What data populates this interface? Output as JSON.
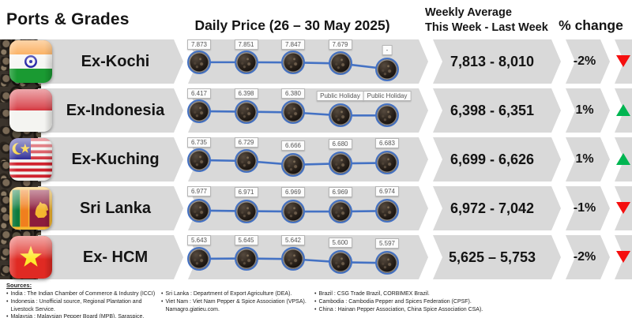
{
  "header": {
    "ports_grades": "Ports & Grades",
    "daily_price": "Daily Price (26 – 30 May 2025)",
    "weekly_avg_line1": "Weekly Average",
    "weekly_avg_line2": "This Week - Last Week",
    "pct_change": "% change"
  },
  "colors": {
    "band": "#d9d9d9",
    "line": "#4472c4",
    "up": "#00b551",
    "down": "#f50f0f",
    "label_border": "#b5b5b5"
  },
  "chart_data": {
    "type": "line",
    "title": "Daily Price (26 – 30 May 2025)",
    "days": 5,
    "legend_position": "none",
    "grid": false,
    "rows": [
      {
        "port": "Ex-Kochi",
        "flag": "india",
        "points": [
          {
            "label": "7.873",
            "y": 0.18
          },
          {
            "label": "7.851",
            "y": 0.18
          },
          {
            "label": "7.847",
            "y": 0.2
          },
          {
            "label": "7.679",
            "y": 0.28
          },
          {
            "label": "-",
            "y": 0.72
          }
        ],
        "weekly_average": "7,813 - 8,010",
        "pct_change": "-2%",
        "direction": "down"
      },
      {
        "port": "Ex-Indonesia",
        "flag": "indonesia",
        "points": [
          {
            "label": "6.417",
            "y": 0.18
          },
          {
            "label": "6.398",
            "y": 0.22
          },
          {
            "label": "6.380",
            "y": 0.28
          },
          {
            "label": "Public Holiday",
            "y": 0.52
          },
          {
            "label": "Public Holiday",
            "y": 0.52
          }
        ],
        "weekly_average": "6,398 - 6,351",
        "pct_change": "1%",
        "direction": "up"
      },
      {
        "port": "Ex-Kuching",
        "flag": "malaysia",
        "points": [
          {
            "label": "6.735",
            "y": 0.18
          },
          {
            "label": "6.729",
            "y": 0.25
          },
          {
            "label": "6.666",
            "y": 0.55
          },
          {
            "label": "6.680",
            "y": 0.45
          },
          {
            "label": "6.683",
            "y": 0.4
          }
        ],
        "weekly_average": "6,699 - 6,626",
        "pct_change": "1%",
        "direction": "up"
      },
      {
        "port": "Sri Lanka",
        "flag": "srilanka",
        "points": [
          {
            "label": "6.977",
            "y": 0.3
          },
          {
            "label": "6.971",
            "y": 0.35
          },
          {
            "label": "6.969",
            "y": 0.38
          },
          {
            "label": "6.969",
            "y": 0.38
          },
          {
            "label": "6.974",
            "y": 0.33
          }
        ],
        "weekly_average": "6,972 - 7,042",
        "pct_change": "-1%",
        "direction": "down"
      },
      {
        "port": "Ex- HCM",
        "flag": "vietnam",
        "points": [
          {
            "label": "5.643",
            "y": 0.25
          },
          {
            "label": "5.645",
            "y": 0.22
          },
          {
            "label": "5.642",
            "y": 0.27
          },
          {
            "label": "5.600",
            "y": 0.52
          },
          {
            "label": "5.597",
            "y": 0.58
          }
        ],
        "weekly_average": "5,625 – 5,753",
        "pct_change": "-2%",
        "direction": "down"
      }
    ]
  },
  "footer": {
    "sources_title": "Sources:",
    "bullet": "•",
    "columns": [
      [
        "India : The Indian Chamber of Commerce & Industry (ICCI)",
        "Indonesia : Unofficial source, Regional Plantation and Livestock Service.",
        "Malaysia : Malaysian Pepper Board (MPB), Saraspice."
      ],
      [
        "Sri Lanka : Department of Export Agriculture (DEA).",
        "Viet Nam : Viet Nam Pepper & Spice Association (VPSA). Namagro.giatieu.com."
      ],
      [
        "Brazil : CSG Trade Brazil, CORBIMEX Brazil.",
        "Cambodia : Cambodia Pepper and Spices Federation (CPSF).",
        "China : Hainan Pepper Association, China Spice Association CSA)."
      ]
    ]
  }
}
